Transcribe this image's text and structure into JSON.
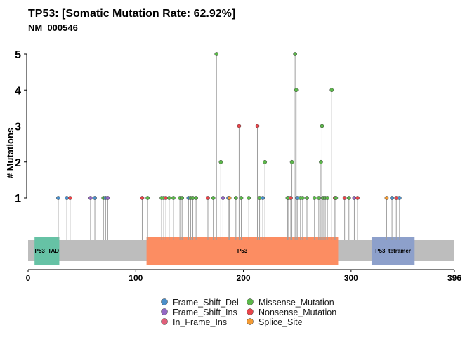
{
  "chart_data": {
    "type": "lollipop",
    "title": "TP53: [Somatic Mutation Rate: 62.92%]",
    "subtitle": "NM_000546",
    "ylabel": "# Mutations",
    "xlim": [
      0,
      396
    ],
    "ylim": [
      1,
      5
    ],
    "x_ticks": [
      0,
      100,
      200,
      300,
      396
    ],
    "y_ticks": [
      1,
      2,
      3,
      4,
      5
    ],
    "protein_length": 396,
    "domains": [
      {
        "name": "P53_TAD",
        "start": 6,
        "end": 29,
        "color": "#66c2a5"
      },
      {
        "name": "P53",
        "start": 110,
        "end": 288,
        "color": "#fc8d62"
      },
      {
        "name": "P53_tetramer",
        "start": 319,
        "end": 359,
        "color": "#8da0cb"
      }
    ],
    "classes": [
      {
        "name": "Frame_Shift_Del",
        "color": "#4b8fc9"
      },
      {
        "name": "Frame_Shift_Ins",
        "color": "#9468c4"
      },
      {
        "name": "In_Frame_Ins",
        "color": "#e05f7a"
      },
      {
        "name": "Missense_Mutation",
        "color": "#5cb84a"
      },
      {
        "name": "Nonsense_Mutation",
        "color": "#e8454a"
      },
      {
        "name": "Splice_Site",
        "color": "#f39a33"
      }
    ],
    "mutations": [
      {
        "pos": 28,
        "count": 1,
        "class": "Frame_Shift_Del"
      },
      {
        "pos": 36,
        "count": 1,
        "class": "Frame_Shift_Del"
      },
      {
        "pos": 39,
        "count": 1,
        "class": "Nonsense_Mutation"
      },
      {
        "pos": 58,
        "count": 1,
        "class": "Frame_Shift_Ins"
      },
      {
        "pos": 62,
        "count": 1,
        "class": "Frame_Shift_Del"
      },
      {
        "pos": 70,
        "count": 1,
        "class": "Missense_Mutation"
      },
      {
        "pos": 72,
        "count": 1,
        "class": "Frame_Shift_Del"
      },
      {
        "pos": 74,
        "count": 1,
        "class": "Frame_Shift_Ins"
      },
      {
        "pos": 106,
        "count": 1,
        "class": "Nonsense_Mutation"
      },
      {
        "pos": 111,
        "count": 1,
        "class": "Missense_Mutation"
      },
      {
        "pos": 124,
        "count": 1,
        "class": "Missense_Mutation"
      },
      {
        "pos": 126,
        "count": 1,
        "class": "Missense_Mutation"
      },
      {
        "pos": 128,
        "count": 1,
        "class": "Nonsense_Mutation"
      },
      {
        "pos": 131,
        "count": 1,
        "class": "Missense_Mutation"
      },
      {
        "pos": 135,
        "count": 1,
        "class": "Missense_Mutation"
      },
      {
        "pos": 141,
        "count": 1,
        "class": "Missense_Mutation"
      },
      {
        "pos": 143,
        "count": 1,
        "class": "Missense_Mutation"
      },
      {
        "pos": 149,
        "count": 1,
        "class": "Frame_Shift_Del"
      },
      {
        "pos": 151,
        "count": 1,
        "class": "Missense_Mutation"
      },
      {
        "pos": 153,
        "count": 1,
        "class": "Missense_Mutation"
      },
      {
        "pos": 156,
        "count": 1,
        "class": "Missense_Mutation"
      },
      {
        "pos": 167,
        "count": 1,
        "class": "Nonsense_Mutation"
      },
      {
        "pos": 172,
        "count": 1,
        "class": "Missense_Mutation"
      },
      {
        "pos": 175,
        "count": 5,
        "class": "Missense_Mutation"
      },
      {
        "pos": 179,
        "count": 2,
        "class": "Missense_Mutation"
      },
      {
        "pos": 181,
        "count": 1,
        "class": "Frame_Shift_Ins"
      },
      {
        "pos": 186,
        "count": 1,
        "class": "Frame_Shift_Del"
      },
      {
        "pos": 187,
        "count": 1,
        "class": "Splice_Site"
      },
      {
        "pos": 193,
        "count": 1,
        "class": "Missense_Mutation"
      },
      {
        "pos": 196,
        "count": 3,
        "class": "Nonsense_Mutation"
      },
      {
        "pos": 198,
        "count": 1,
        "class": "Missense_Mutation"
      },
      {
        "pos": 205,
        "count": 1,
        "class": "Missense_Mutation"
      },
      {
        "pos": 213,
        "count": 3,
        "class": "Nonsense_Mutation"
      },
      {
        "pos": 215,
        "count": 1,
        "class": "Missense_Mutation"
      },
      {
        "pos": 218,
        "count": 1,
        "class": "Frame_Shift_Del"
      },
      {
        "pos": 220,
        "count": 2,
        "class": "Missense_Mutation"
      },
      {
        "pos": 241,
        "count": 1,
        "class": "Missense_Mutation"
      },
      {
        "pos": 242,
        "count": 1,
        "class": "Missense_Mutation"
      },
      {
        "pos": 244,
        "count": 1,
        "class": "Nonsense_Mutation"
      },
      {
        "pos": 245,
        "count": 2,
        "class": "Missense_Mutation"
      },
      {
        "pos": 248,
        "count": 5,
        "class": "Missense_Mutation"
      },
      {
        "pos": 249,
        "count": 4,
        "class": "Missense_Mutation"
      },
      {
        "pos": 250,
        "count": 1,
        "class": "Frame_Shift_Del"
      },
      {
        "pos": 253,
        "count": 1,
        "class": "Missense_Mutation"
      },
      {
        "pos": 255,
        "count": 1,
        "class": "Missense_Mutation"
      },
      {
        "pos": 259,
        "count": 1,
        "class": "Missense_Mutation"
      },
      {
        "pos": 266,
        "count": 1,
        "class": "Missense_Mutation"
      },
      {
        "pos": 270,
        "count": 1,
        "class": "Missense_Mutation"
      },
      {
        "pos": 272,
        "count": 2,
        "class": "Missense_Mutation"
      },
      {
        "pos": 273,
        "count": 3,
        "class": "Missense_Mutation"
      },
      {
        "pos": 274,
        "count": 1,
        "class": "Missense_Mutation"
      },
      {
        "pos": 276,
        "count": 1,
        "class": "Missense_Mutation"
      },
      {
        "pos": 278,
        "count": 1,
        "class": "Missense_Mutation"
      },
      {
        "pos": 282,
        "count": 4,
        "class": "Missense_Mutation"
      },
      {
        "pos": 285,
        "count": 1,
        "class": "Nonsense_Mutation"
      },
      {
        "pos": 286,
        "count": 1,
        "class": "Missense_Mutation"
      },
      {
        "pos": 294,
        "count": 1,
        "class": "Nonsense_Mutation"
      },
      {
        "pos": 298,
        "count": 1,
        "class": "Missense_Mutation"
      },
      {
        "pos": 303,
        "count": 1,
        "class": "Frame_Shift_Ins"
      },
      {
        "pos": 306,
        "count": 1,
        "class": "Nonsense_Mutation"
      },
      {
        "pos": 333,
        "count": 1,
        "class": "Splice_Site"
      },
      {
        "pos": 338,
        "count": 1,
        "class": "Frame_Shift_Del"
      },
      {
        "pos": 342,
        "count": 1,
        "class": "Nonsense_Mutation"
      },
      {
        "pos": 345,
        "count": 1,
        "class": "Frame_Shift_Del"
      }
    ]
  }
}
